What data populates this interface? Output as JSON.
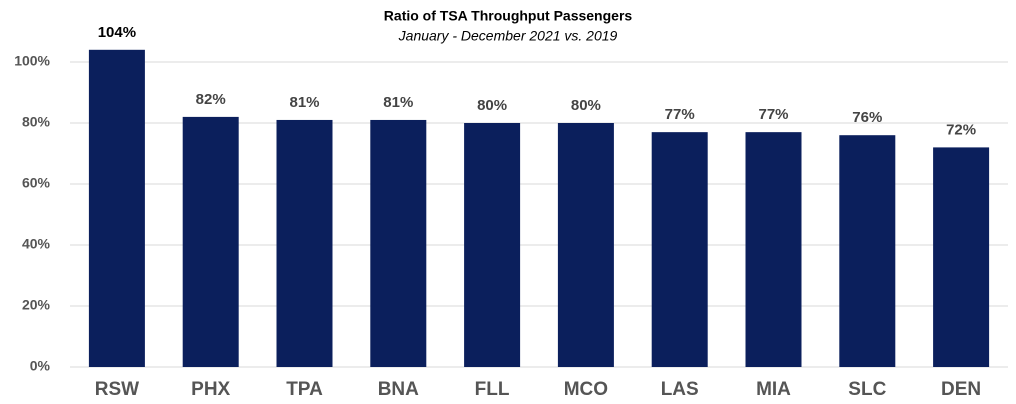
{
  "chart_data": {
    "type": "bar",
    "title": "Ratio of TSA Throughput Passengers",
    "subtitle": "January - December 2021 vs. 2019",
    "categories": [
      "RSW",
      "PHX",
      "TPA",
      "BNA",
      "FLL",
      "MCO",
      "LAS",
      "MIA",
      "SLC",
      "DEN"
    ],
    "values": [
      104,
      82,
      81,
      81,
      80,
      80,
      77,
      77,
      76,
      72
    ],
    "value_labels": [
      "104%",
      "82%",
      "81%",
      "81%",
      "80%",
      "80%",
      "77%",
      "77%",
      "76%",
      "72%"
    ],
    "color": "#0b1f5c",
    "ylim": [
      0,
      110
    ],
    "yticks": [
      {
        "value": 0,
        "label": "0%"
      },
      {
        "value": 20,
        "label": "20%"
      },
      {
        "value": 40,
        "label": "40%"
      },
      {
        "value": 60,
        "label": "60%"
      },
      {
        "value": 80,
        "label": "80%"
      },
      {
        "value": 100,
        "label": "100%"
      }
    ],
    "grid": true
  }
}
